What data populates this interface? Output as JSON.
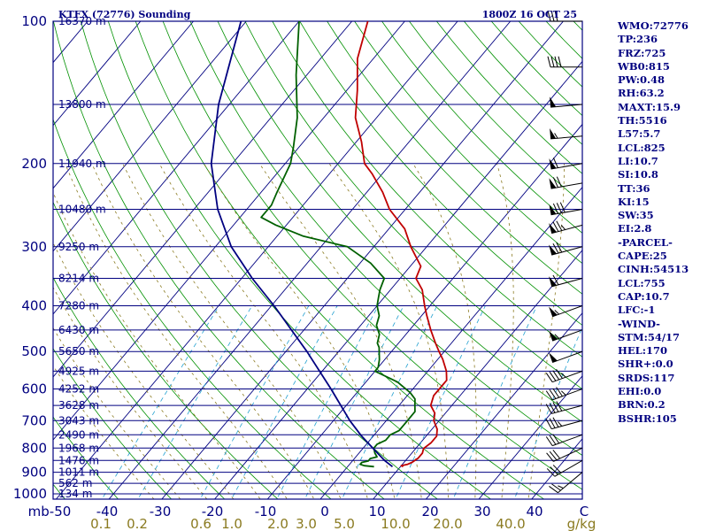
{
  "header": {
    "station_title": "KTFX (72776) Sounding",
    "time_title": "1800Z 16 OCT 25"
  },
  "stats": [
    "WMO:72776",
    "TP:236",
    "FRZ:725",
    "WB0:815",
    "PW:0.48",
    "RH:63.2",
    "MAXT:15.9",
    "TH:5516",
    "L57:5.7",
    "LCL:825",
    "LI:10.7",
    "SI:10.8",
    "TT:36",
    "KI:15",
    "SW:35",
    "EI:2.8",
    "-PARCEL-",
    "CAPE:25",
    "CINH:54513",
    "LCL:755",
    "CAP:10.7",
    "LFC:-1",
    "-WIND-",
    "STM:54/17",
    "HEL:170",
    "SHR+:0.0",
    "SRDS:117",
    "EHI:0.0",
    "BRN:0.2",
    "BSHR:105"
  ],
  "chart_data": {
    "type": "line",
    "chart_kind": "skew-T log-p sounding",
    "xlabel": "",
    "ylabel": "",
    "temperature_ticks": [
      "mb-50",
      "-40",
      "-30",
      "-20",
      "-10",
      "0",
      "10",
      "20",
      "30",
      "40",
      "C"
    ],
    "mixing_ratio_ticks": [
      "0.1",
      "0.2",
      "0.6",
      "1.0",
      "2.0",
      "3.0",
      "5.0",
      "10.0",
      "20.0",
      "40.0",
      "g/kg"
    ],
    "pressure_ticks": [
      "100",
      "200",
      "300",
      "400",
      "500",
      "600",
      "700",
      "800",
      "900",
      "1000"
    ],
    "height_labels": [
      {
        "p": 100,
        "text": "16370 m"
      },
      {
        "p": 150,
        "text": "13800 m"
      },
      {
        "p": 200,
        "text": "11940 m"
      },
      {
        "p": 250,
        "text": "10480 m"
      },
      {
        "p": 300,
        "text": "9250 m"
      },
      {
        "p": 350,
        "text": "8214 m"
      },
      {
        "p": 400,
        "text": "7280 m"
      },
      {
        "p": 450,
        "text": "6430 m"
      },
      {
        "p": 500,
        "text": "5650 m"
      },
      {
        "p": 550,
        "text": "4925 m"
      },
      {
        "p": 600,
        "text": "4252 m"
      },
      {
        "p": 650,
        "text": "3628 m"
      },
      {
        "p": 700,
        "text": "3043 m"
      },
      {
        "p": 750,
        "text": "2490 m"
      },
      {
        "p": 800,
        "text": "1968 m"
      },
      {
        "p": 850,
        "text": "1476 m"
      },
      {
        "p": 900,
        "text": "1011 m"
      },
      {
        "p": 950,
        "text": "562 m"
      },
      {
        "p": 1000,
        "text": "134 m"
      }
    ],
    "series": [
      {
        "key": "temperature",
        "color": "#c00000",
        "points": [
          [
            876,
            10.5
          ],
          [
            872,
            10
          ],
          [
            866,
            11
          ],
          [
            858,
            11.5
          ],
          [
            840,
            12
          ],
          [
            820,
            12
          ],
          [
            802,
            11.5
          ],
          [
            780,
            12
          ],
          [
            755,
            12
          ],
          [
            730,
            11
          ],
          [
            700,
            9
          ],
          [
            675,
            8
          ],
          [
            650,
            6
          ],
          [
            620,
            5
          ],
          [
            600,
            5
          ],
          [
            575,
            5
          ],
          [
            550,
            3.5
          ],
          [
            520,
            1
          ],
          [
            500,
            -1
          ],
          [
            480,
            -3
          ],
          [
            450,
            -6
          ],
          [
            420,
            -9
          ],
          [
            400,
            -11
          ],
          [
            370,
            -14
          ],
          [
            350,
            -17
          ],
          [
            330,
            -18
          ],
          [
            300,
            -23
          ],
          [
            275,
            -27
          ],
          [
            250,
            -33
          ],
          [
            230,
            -37
          ],
          [
            210,
            -42
          ],
          [
            200,
            -45
          ],
          [
            180,
            -49
          ],
          [
            160,
            -54
          ],
          [
            140,
            -58
          ],
          [
            120,
            -63
          ],
          [
            100,
            -67
          ]
        ]
      },
      {
        "key": "dewpoint",
        "color": "#006000",
        "points": [
          [
            876,
            5
          ],
          [
            872,
            3
          ],
          [
            866,
            2
          ],
          [
            858,
            2
          ],
          [
            852,
            3
          ],
          [
            842,
            3
          ],
          [
            835,
            4
          ],
          [
            820,
            3
          ],
          [
            800,
            2
          ],
          [
            785,
            2
          ],
          [
            770,
            3
          ],
          [
            750,
            3
          ],
          [
            735,
            4
          ],
          [
            700,
            4
          ],
          [
            670,
            4
          ],
          [
            650,
            3
          ],
          [
            630,
            2
          ],
          [
            610,
            0
          ],
          [
            595,
            -2
          ],
          [
            580,
            -4
          ],
          [
            570,
            -6
          ],
          [
            560,
            -8
          ],
          [
            550,
            -10
          ],
          [
            540,
            -10
          ],
          [
            520,
            -11
          ],
          [
            505,
            -12
          ],
          [
            490,
            -13
          ],
          [
            480,
            -14
          ],
          [
            460,
            -15
          ],
          [
            440,
            -17
          ],
          [
            420,
            -18
          ],
          [
            400,
            -20
          ],
          [
            385,
            -21
          ],
          [
            370,
            -22
          ],
          [
            350,
            -23
          ],
          [
            325,
            -28
          ],
          [
            300,
            -35
          ],
          [
            285,
            -45
          ],
          [
            270,
            -52
          ],
          [
            260,
            -56
          ],
          [
            245,
            -56
          ],
          [
            230,
            -57
          ],
          [
            200,
            -59
          ],
          [
            185,
            -61
          ],
          [
            160,
            -65
          ],
          [
            130,
            -72
          ],
          [
            100,
            -80
          ]
        ]
      },
      {
        "key": "parcel",
        "color": "#000080",
        "points": [
          [
            876,
            8.5
          ],
          [
            850,
            6
          ],
          [
            800,
            1.8
          ],
          [
            755,
            -2.2
          ],
          [
            700,
            -6.9
          ],
          [
            600,
            -15.5
          ],
          [
            500,
            -26
          ],
          [
            400,
            -39.5
          ],
          [
            350,
            -48
          ],
          [
            300,
            -57
          ],
          [
            250,
            -65.5
          ],
          [
            200,
            -74
          ],
          [
            150,
            -82
          ],
          [
            100,
            -91
          ]
        ]
      }
    ]
  },
  "wind_barbs": [
    {
      "p": 900,
      "dir": 230,
      "spd": 25
    },
    {
      "p": 850,
      "dir": 240,
      "spd": 30
    },
    {
      "p": 800,
      "dir": 245,
      "spd": 30
    },
    {
      "p": 750,
      "dir": 250,
      "spd": 30
    },
    {
      "p": 700,
      "dir": 255,
      "spd": 35
    },
    {
      "p": 650,
      "dir": 255,
      "spd": 40
    },
    {
      "p": 600,
      "dir": 250,
      "spd": 45
    },
    {
      "p": 550,
      "dir": 250,
      "spd": 45
    },
    {
      "p": 500,
      "dir": 250,
      "spd": 50
    },
    {
      "p": 450,
      "dir": 250,
      "spd": 55
    },
    {
      "p": 400,
      "dir": 250,
      "spd": 55
    },
    {
      "p": 350,
      "dir": 255,
      "spd": 60
    },
    {
      "p": 300,
      "dir": 255,
      "spd": 70
    },
    {
      "p": 270,
      "dir": 255,
      "spd": 75
    },
    {
      "p": 250,
      "dir": 260,
      "spd": 80
    },
    {
      "p": 220,
      "dir": 260,
      "spd": 70
    },
    {
      "p": 200,
      "dir": 260,
      "spd": 60
    },
    {
      "p": 175,
      "dir": 265,
      "spd": 55
    },
    {
      "p": 150,
      "dir": 265,
      "spd": 50
    },
    {
      "p": 125,
      "dir": 270,
      "spd": 40
    },
    {
      "p": 100,
      "dir": 270,
      "spd": 30
    }
  ],
  "colors": {
    "isobar": "#000080",
    "dry_adiabat": "#009000",
    "moist_adiabat": "#8a7a20",
    "mixing_ratio": "#20a0d0",
    "frame": "#000080",
    "wind": "#000000"
  }
}
